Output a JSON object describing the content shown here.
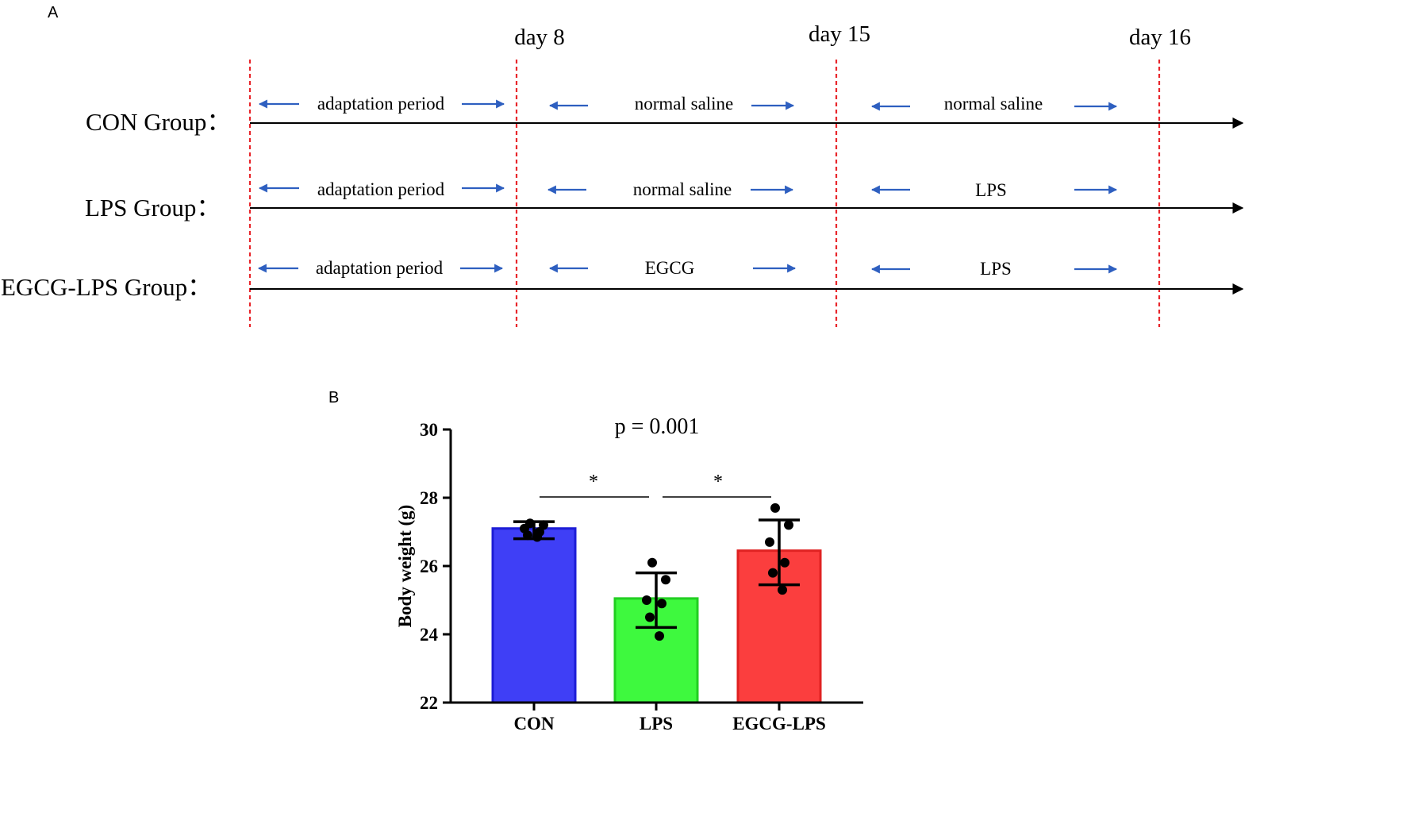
{
  "panel_a": {
    "label": "A",
    "day_labels": [
      "day 8",
      "day 15",
      "day 16"
    ],
    "groups": [
      {
        "label": "CON Group：",
        "periods": [
          "adaptation period",
          "normal saline",
          "normal saline"
        ]
      },
      {
        "label": "LPS Group：",
        "periods": [
          "adaptation period",
          "normal saline",
          "LPS"
        ]
      },
      {
        "label": "EGCG-LPS Group：",
        "periods": [
          "adaptation period",
          "EGCG",
          "LPS"
        ]
      }
    ],
    "colors": {
      "arrow": "#2e5fc0",
      "marker": "#e8262b",
      "axis": "#000000"
    }
  },
  "panel_b": {
    "label": "B",
    "p_value_text": "p = 0.001",
    "significance_marks": [
      "*",
      "*"
    ]
  },
  "chart_data": {
    "type": "bar",
    "title": "p = 0.001",
    "xlabel": "",
    "ylabel": "Body weight (g)",
    "ylim": [
      22,
      30
    ],
    "yticks": [
      22,
      24,
      26,
      28,
      30
    ],
    "categories": [
      "CON",
      "LPS",
      "EGCG-LPS"
    ],
    "values": [
      27.1,
      25.05,
      26.45
    ],
    "error_low": [
      26.8,
      24.2,
      25.45
    ],
    "error_high": [
      27.3,
      25.8,
      27.35
    ],
    "colors": [
      "#3f3ff6",
      "#3ef93e",
      "#fb3e3e"
    ],
    "edge_colors": [
      "#1d1dd6",
      "#22cf22",
      "#e02222"
    ],
    "points": [
      [
        27.25,
        27.2,
        27.1,
        27.0,
        26.9,
        26.85
      ],
      [
        26.1,
        25.6,
        25.0,
        24.9,
        24.5,
        23.95
      ],
      [
        27.7,
        27.2,
        26.7,
        26.1,
        25.8,
        25.3
      ]
    ],
    "comparisons": [
      {
        "from": "CON",
        "to": "LPS",
        "label": "*"
      },
      {
        "from": "LPS",
        "to": "EGCG-LPS",
        "label": "*"
      }
    ]
  }
}
